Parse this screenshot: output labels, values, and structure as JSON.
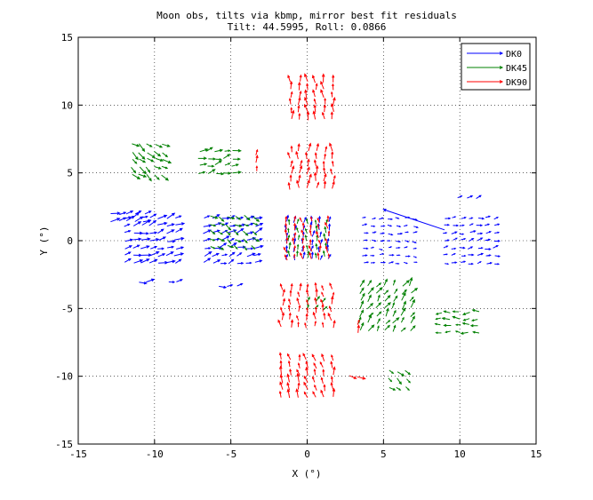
{
  "chart_data": {
    "type": "scatter",
    "title": "Moon obs, tilts via kbmp, mirror best fit residuals",
    "subtitle": "Tilt: 44.5995, Roll: 0.0866",
    "xlabel": "X (°)",
    "ylabel": "Y (°)",
    "xlim": [
      -15,
      15
    ],
    "ylim": [
      -15,
      15
    ],
    "xticks": [
      "-15",
      "-10",
      "-5",
      "0",
      "5",
      "10",
      "15"
    ],
    "yticks": [
      "-15",
      "-10",
      "-5",
      "0",
      "5",
      "10",
      "15"
    ],
    "grid": true,
    "legend_position": "top-right",
    "series": [
      {
        "name": "DK0",
        "color": "#0000ff",
        "marker": "quiver-arrow",
        "clusters": [
          {
            "cx": -11.8,
            "cy": 1.7,
            "nx": 5,
            "ny": 2,
            "sx": 0.55,
            "sy": 0.55,
            "angle_deg": 15,
            "len": 0.5
          },
          {
            "cx": -10.3,
            "cy": 0.0,
            "nx": 7,
            "ny": 7,
            "sx": 0.55,
            "sy": 0.55,
            "angle_deg": 18,
            "len": 0.5
          },
          {
            "cx": -10.8,
            "cy": -3.1,
            "nx": 2,
            "ny": 1,
            "sx": 0.55,
            "sy": 0.55,
            "angle_deg": 10,
            "len": 0.45
          },
          {
            "cx": -8.8,
            "cy": -3.1,
            "nx": 2,
            "ny": 1,
            "sx": 0.55,
            "sy": 0.55,
            "angle_deg": 10,
            "len": 0.45
          },
          {
            "cx": -5.1,
            "cy": 0.0,
            "nx": 7,
            "ny": 7,
            "sx": 0.55,
            "sy": 0.55,
            "angle_deg": 20,
            "len": 0.45
          },
          {
            "cx": -5.2,
            "cy": -3.3,
            "nx": 3,
            "ny": 1,
            "sx": 0.55,
            "sy": 0.55,
            "angle_deg": 5,
            "len": 0.4
          },
          {
            "cx": 0.0,
            "cy": 0.0,
            "nx": 6,
            "ny": 6,
            "sx": 0.55,
            "sy": 0.55,
            "angle_deg": 80,
            "len": 0.35
          },
          {
            "cx": 5.3,
            "cy": 0.0,
            "nx": 7,
            "ny": 7,
            "sx": 0.55,
            "sy": 0.55,
            "angle_deg": 0,
            "len": 0.25
          },
          {
            "cx": 10.6,
            "cy": 0.0,
            "nx": 7,
            "ny": 7,
            "sx": 0.55,
            "sy": 0.55,
            "angle_deg": 10,
            "len": 0.3
          },
          {
            "cx": 10.5,
            "cy": 3.1,
            "nx": 3,
            "ny": 1,
            "sx": 0.6,
            "sy": 0.55,
            "angle_deg": 20,
            "len": 0.35
          }
        ],
        "highlight_arrow": {
          "x1": 9.0,
          "y1": 0.8,
          "x2": 5.0,
          "y2": 2.3
        }
      },
      {
        "name": "DK45",
        "color": "#008000",
        "marker": "quiver-arrow",
        "clusters": [
          {
            "cx": -10.5,
            "cy": 6.0,
            "nx": 5,
            "ny": 5,
            "sx": 0.5,
            "sy": 0.55,
            "angle_deg": -35,
            "len": 0.5
          },
          {
            "cx": -6.0,
            "cy": 5.8,
            "nx": 5,
            "ny": 4,
            "sx": 0.55,
            "sy": 0.55,
            "angle_deg": 15,
            "len": 0.45
          },
          {
            "cx": -5.0,
            "cy": 0.7,
            "nx": 6,
            "ny": 5,
            "sx": 0.55,
            "sy": 0.55,
            "angle_deg": -30,
            "len": 0.4
          },
          {
            "cx": 0.0,
            "cy": 0.0,
            "nx": 5,
            "ny": 5,
            "sx": 0.6,
            "sy": 0.6,
            "angle_deg": 90,
            "len": 0.35
          },
          {
            "cx": 0.5,
            "cy": -4.8,
            "nx": 3,
            "ny": 2,
            "sx": 0.55,
            "sy": 0.55,
            "angle_deg": 60,
            "len": 0.35
          },
          {
            "cx": 5.1,
            "cy": -5.0,
            "nx": 7,
            "ny": 7,
            "sx": 0.55,
            "sy": 0.55,
            "angle_deg": 55,
            "len": 0.45
          },
          {
            "cx": 10.0,
            "cy": -6.0,
            "nx": 5,
            "ny": 4,
            "sx": 0.6,
            "sy": 0.5,
            "angle_deg": 180,
            "len": 0.4
          },
          {
            "cx": 5.9,
            "cy": -10.2,
            "nx": 3,
            "ny": 3,
            "sx": 0.55,
            "sy": 0.6,
            "angle_deg": -40,
            "len": 0.4
          }
        ]
      },
      {
        "name": "DK90",
        "color": "#ff0000",
        "marker": "quiver-arrow",
        "clusters": [
          {
            "cx": 0.3,
            "cy": 10.3,
            "nx": 6,
            "ny": 6,
            "sx": 0.55,
            "sy": 0.55,
            "angle_deg": 95,
            "len": 0.45
          },
          {
            "cx": 0.3,
            "cy": 5.2,
            "nx": 6,
            "ny": 6,
            "sx": 0.55,
            "sy": 0.55,
            "angle_deg": 90,
            "len": 0.45
          },
          {
            "cx": -3.3,
            "cy": 5.7,
            "nx": 1,
            "ny": 3,
            "sx": 0.55,
            "sy": 0.55,
            "angle_deg": 80,
            "len": 0.4
          },
          {
            "cx": 0.0,
            "cy": 0.0,
            "nx": 6,
            "ny": 6,
            "sx": 0.55,
            "sy": 0.55,
            "angle_deg": 100,
            "len": 0.35
          },
          {
            "cx": 0.0,
            "cy": -5.0,
            "nx": 7,
            "ny": 6,
            "sx": 0.55,
            "sy": 0.55,
            "angle_deg": 95,
            "len": 0.4
          },
          {
            "cx": 3.3,
            "cy": -6.5,
            "nx": 1,
            "ny": 2,
            "sx": 0.55,
            "sy": 0.5,
            "angle_deg": 70,
            "len": 0.4
          },
          {
            "cx": 0.0,
            "cy": -10.2,
            "nx": 7,
            "ny": 6,
            "sx": 0.55,
            "sy": 0.55,
            "angle_deg": 100,
            "len": 0.45
          },
          {
            "cx": 3.0,
            "cy": -10.0,
            "nx": 2,
            "ny": 1,
            "sx": 0.55,
            "sy": 0.55,
            "angle_deg": -30,
            "len": 0.45
          }
        ]
      }
    ]
  }
}
